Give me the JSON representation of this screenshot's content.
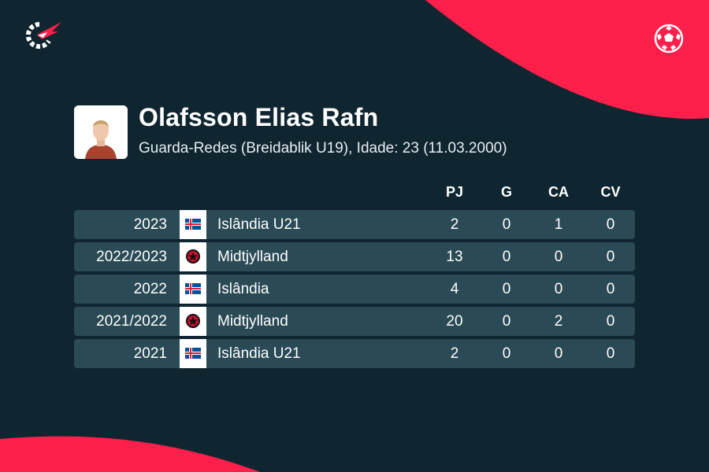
{
  "player": {
    "name": "Olafsson Elias Rafn",
    "info": "Guarda-Redes (Breidablik U19), Idade: 23 (11.03.2000)"
  },
  "headers": {
    "pj": "PJ",
    "g": "G",
    "ca": "CA",
    "cv": "CV"
  },
  "rows": [
    {
      "season": "2023",
      "team": "Islândia U21",
      "flag": "iceland-flag-icon",
      "pj": "2",
      "g": "0",
      "ca": "1",
      "cv": "0"
    },
    {
      "season": "2022/2023",
      "team": "Midtjylland",
      "flag": "midtjylland-crest-icon",
      "pj": "13",
      "g": "0",
      "ca": "0",
      "cv": "0"
    },
    {
      "season": "2022",
      "team": "Islândia",
      "flag": "iceland-flag-icon",
      "pj": "4",
      "g": "0",
      "ca": "0",
      "cv": "0"
    },
    {
      "season": "2021/2022",
      "team": "Midtjylland",
      "flag": "midtjylland-crest-icon",
      "pj": "20",
      "g": "0",
      "ca": "2",
      "cv": "0"
    },
    {
      "season": "2021",
      "team": "Islândia U21",
      "flag": "iceland-flag-icon",
      "pj": "2",
      "g": "0",
      "ca": "0",
      "cv": "0"
    }
  ],
  "colors": {
    "background": "#0f2530",
    "row": "#2a4a55",
    "accent": "#ff1f4b",
    "text": "#ffffff"
  }
}
